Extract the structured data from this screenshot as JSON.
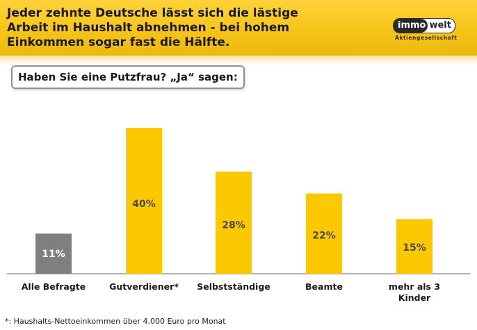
{
  "header": {
    "headline": "Jeder zehnte  Deutsche lässt sich die lästige\nArbeit im Haushalt abnehmen - bei hohem\nEinkommen sogar fast die Hälfte.",
    "logo": {
      "part1": "immo",
      "part2": "welt",
      "tagline": "Aktiengesellschaft"
    }
  },
  "question": "Haben Sie eine Putzfrau? „Ja“ sagen:",
  "chart_data": {
    "type": "bar",
    "title": "Haben Sie eine Putzfrau? „Ja“ sagen:",
    "categories": [
      "Alle Befragte",
      "Gutverdiener*",
      "Selbstständige",
      "Beamte",
      "mehr als 3 Kinder"
    ],
    "values": [
      11,
      40,
      28,
      22,
      15
    ],
    "labels": [
      "11%",
      "40%",
      "28%",
      "22%",
      "15%"
    ],
    "unit": "%",
    "colors": [
      "#7f7f7f",
      "#fcc900",
      "#fcc900",
      "#fcc900",
      "#fcc900"
    ],
    "ylim": [
      0,
      40
    ],
    "grid": false,
    "xlabel": "",
    "ylabel": ""
  },
  "footnote": "*: Haushalts-Nettoeinkommen über 4.000 Euro pro Monat"
}
